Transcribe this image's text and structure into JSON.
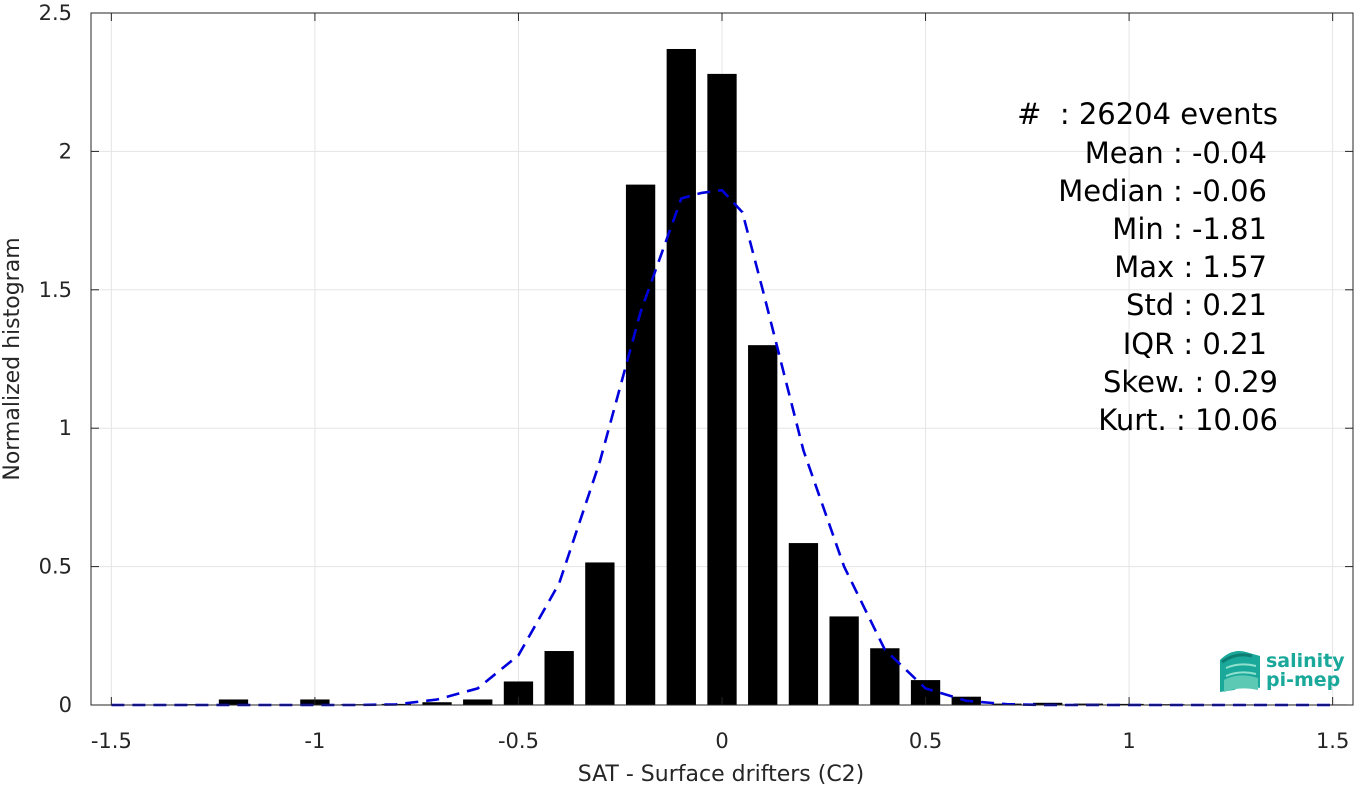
{
  "chart_data": {
    "type": "bar",
    "xlabel": "SAT - Surface drifters (C2)",
    "ylabel": "Normalized histogram",
    "xlim": [
      -1.55,
      1.55
    ],
    "ylim": [
      0,
      2.5
    ],
    "xticks": [
      -1.5,
      -1,
      -0.5,
      0,
      0.5,
      1,
      1.5
    ],
    "xtick_labels": [
      "-1.5",
      "-1",
      "-0.5",
      "0",
      "0.5",
      "1",
      "1.5"
    ],
    "yticks": [
      0,
      0.5,
      1,
      1.5,
      2,
      2.5
    ],
    "ytick_labels": [
      "0",
      "0.5",
      "1",
      "1.5",
      "2",
      "2.5"
    ],
    "grid": true,
    "bin_width": 0.1,
    "bar_color": "#000000",
    "bars": [
      {
        "x": -1.5,
        "value": 0.001
      },
      {
        "x": -1.4,
        "value": 0.001
      },
      {
        "x": -1.3,
        "value": 0.003
      },
      {
        "x": -1.2,
        "value": 0.02
      },
      {
        "x": -1.1,
        "value": 0.002
      },
      {
        "x": -1.0,
        "value": 0.02
      },
      {
        "x": -0.9,
        "value": 0.003
      },
      {
        "x": -0.8,
        "value": 0.004
      },
      {
        "x": -0.7,
        "value": 0.01
      },
      {
        "x": -0.6,
        "value": 0.02
      },
      {
        "x": -0.5,
        "value": 0.085
      },
      {
        "x": -0.4,
        "value": 0.195
      },
      {
        "x": -0.3,
        "value": 0.515
      },
      {
        "x": -0.2,
        "value": 1.88
      },
      {
        "x": -0.1,
        "value": 2.37
      },
      {
        "x": 0.0,
        "value": 2.28
      },
      {
        "x": 0.1,
        "value": 1.3
      },
      {
        "x": 0.2,
        "value": 0.585
      },
      {
        "x": 0.3,
        "value": 0.32
      },
      {
        "x": 0.4,
        "value": 0.205
      },
      {
        "x": 0.5,
        "value": 0.09
      },
      {
        "x": 0.6,
        "value": 0.03
      },
      {
        "x": 0.7,
        "value": 0.005
      },
      {
        "x": 0.8,
        "value": 0.008
      },
      {
        "x": 0.9,
        "value": 0.005
      },
      {
        "x": 1.0,
        "value": 0.004
      },
      {
        "x": 1.1,
        "value": 0.003
      },
      {
        "x": 1.2,
        "value": 0.002
      },
      {
        "x": 1.3,
        "value": 0.002
      },
      {
        "x": 1.4,
        "value": 0.002
      },
      {
        "x": 1.5,
        "value": 0.002
      }
    ],
    "fit_curve": {
      "style": "dashed",
      "color": "#0000dd",
      "x": [
        -1.5,
        -1.4,
        -1.3,
        -1.2,
        -1.1,
        -1.0,
        -0.9,
        -0.8,
        -0.7,
        -0.6,
        -0.5,
        -0.4,
        -0.3,
        -0.2,
        -0.1,
        -0.05,
        0.0,
        0.05,
        0.1,
        0.2,
        0.3,
        0.4,
        0.5,
        0.6,
        0.7,
        0.8,
        0.9,
        1.0,
        1.1,
        1.2,
        1.3,
        1.4,
        1.5
      ],
      "y": [
        0,
        0,
        0,
        0,
        0,
        0,
        0,
        0.002,
        0.02,
        0.06,
        0.18,
        0.44,
        0.88,
        1.42,
        1.83,
        1.85,
        1.86,
        1.78,
        1.5,
        0.92,
        0.5,
        0.2,
        0.06,
        0.015,
        0.003,
        0,
        0,
        0,
        0,
        0,
        0,
        0,
        0
      ]
    }
  },
  "stats": {
    "line1": "#  : 26204 events",
    "line2": "Mean : -0.04",
    "line3": "Median : -0.06",
    "line4": "Min : -1.81",
    "line5": "Max : 1.57",
    "line6": "Std : 0.21",
    "line7": "IQR : 0.21",
    "line8": "Skew. : 0.29",
    "line9": "Kurt. : 10.06"
  },
  "logo": {
    "line1": "salinity",
    "line2": "pi-mep",
    "color": "#1aa89a"
  }
}
